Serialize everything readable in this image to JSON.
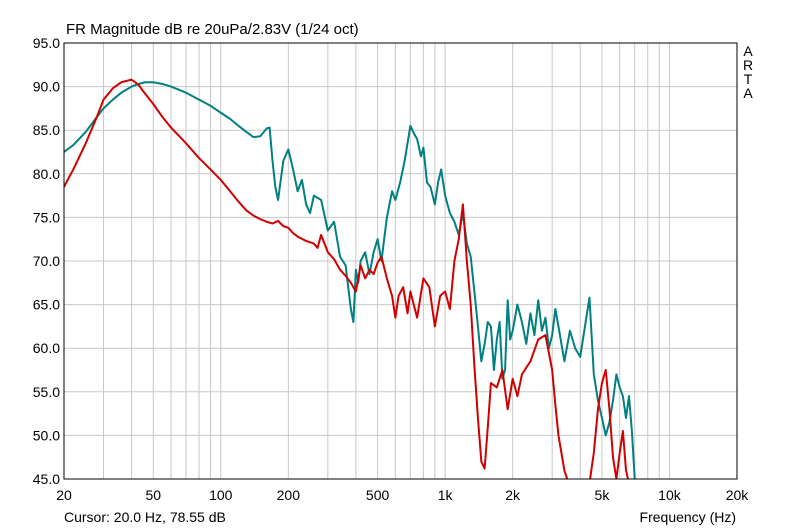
{
  "chart_data": {
    "type": "line",
    "title": "FR Magnitude dB re 20uPa/2.83V (1/24 oct)",
    "xlabel": "Frequency (Hz)",
    "ylabel": "",
    "xscale": "log",
    "xlim": [
      20,
      20000
    ],
    "ylim": [
      45,
      95
    ],
    "grid": true,
    "x_ticks": [
      20,
      50,
      100,
      200,
      500,
      1000,
      2000,
      5000,
      10000,
      20000
    ],
    "x_tick_labels": [
      "20",
      "50",
      "100",
      "200",
      "500",
      "1k",
      "2k",
      "5k",
      "10k",
      "20k"
    ],
    "y_ticks": [
      45,
      50,
      55,
      60,
      65,
      70,
      75,
      80,
      85,
      90,
      95
    ],
    "y_tick_labels": [
      "45.0",
      "50.0",
      "55.0",
      "60.0",
      "65.0",
      "70.0",
      "75.0",
      "80.0",
      "85.0",
      "90.0",
      "95.0"
    ],
    "series": [
      {
        "color": "#008080",
        "x": [
          20,
          22,
          25,
          28,
          30,
          33,
          36,
          40,
          43,
          46,
          50,
          55,
          60,
          70,
          80,
          90,
          100,
          110,
          120,
          130,
          140,
          150,
          160,
          165,
          170,
          175,
          180,
          190,
          200,
          210,
          220,
          230,
          240,
          250,
          260,
          280,
          300,
          320,
          340,
          360,
          380,
          390,
          400,
          410,
          420,
          440,
          460,
          480,
          500,
          520,
          550,
          580,
          600,
          630,
          660,
          700,
          730,
          750,
          780,
          800,
          830,
          860,
          900,
          930,
          960,
          1000,
          1050,
          1100,
          1150,
          1200,
          1250,
          1300,
          1350,
          1400,
          1450,
          1500,
          1550,
          1600,
          1650,
          1700,
          1750,
          1800,
          1850,
          1900,
          1950,
          2000,
          2100,
          2200,
          2300,
          2400,
          2500,
          2600,
          2700,
          2800,
          2900,
          3000,
          3100,
          3200,
          3400,
          3600,
          3800,
          4000,
          4200,
          4400,
          4600,
          4800,
          5000,
          5200,
          5400,
          5600,
          5800,
          6000,
          6200,
          6400,
          6600,
          6800,
          7000,
          7200,
          7400
        ],
        "y": [
          82.5,
          83.3,
          84.8,
          86.5,
          87.5,
          88.5,
          89.3,
          90.0,
          90.3,
          90.5,
          90.5,
          90.3,
          90.0,
          89.3,
          88.5,
          87.8,
          87.0,
          86.3,
          85.5,
          84.8,
          84.2,
          84.3,
          85.2,
          85.3,
          81.5,
          78.5,
          77.0,
          81.5,
          82.8,
          80.5,
          78.0,
          79.3,
          76.5,
          75.5,
          77.5,
          77.0,
          73.5,
          74.5,
          70.5,
          69.5,
          64.5,
          63.0,
          69.0,
          67.5,
          70.0,
          71.0,
          68.5,
          71.0,
          72.5,
          70.0,
          75.0,
          78.0,
          77.0,
          79.0,
          81.5,
          85.5,
          84.5,
          84.0,
          82.0,
          83.0,
          79.0,
          78.5,
          76.5,
          79.0,
          80.5,
          77.5,
          75.5,
          74.5,
          73.0,
          75.5,
          72.0,
          70.5,
          66.5,
          62.5,
          58.5,
          60.5,
          63.0,
          62.5,
          57.5,
          61.0,
          63.0,
          56.5,
          57.5,
          65.5,
          61.0,
          62.0,
          65.0,
          63.0,
          60.5,
          64.0,
          61.5,
          65.5,
          62.0,
          63.5,
          60.0,
          61.5,
          64.5,
          62.5,
          58.5,
          62.0,
          60.0,
          59.0,
          62.5,
          65.8,
          57.0,
          54.0,
          52.0,
          50.0,
          51.5,
          54.0,
          57.0,
          55.5,
          54.5,
          52.0,
          54.5,
          50.5,
          45.0,
          43.0,
          42.0
        ]
      },
      {
        "color": "#d10000",
        "x": [
          20,
          22,
          25,
          28,
          30,
          33,
          36,
          40,
          43,
          45,
          50,
          55,
          60,
          70,
          80,
          90,
          100,
          110,
          120,
          130,
          140,
          150,
          160,
          170,
          180,
          190,
          200,
          210,
          220,
          240,
          260,
          270,
          280,
          300,
          320,
          340,
          360,
          380,
          400,
          420,
          440,
          460,
          480,
          500,
          520,
          550,
          580,
          600,
          620,
          650,
          680,
          700,
          750,
          800,
          850,
          900,
          950,
          1000,
          1050,
          1100,
          1150,
          1200,
          1250,
          1300,
          1350,
          1400,
          1450,
          1500,
          1550,
          1600,
          1700,
          1800,
          1900,
          2000,
          2100,
          2200,
          2400,
          2600,
          2800,
          3000,
          3100,
          3200,
          3400,
          3600,
          3800,
          4000,
          4200,
          4400,
          4600,
          4800,
          5000,
          5200,
          5400,
          5600,
          5800,
          6000,
          6200,
          6400,
          6600,
          6800,
          7000
        ],
        "y": [
          78.5,
          80.5,
          83.5,
          86.5,
          88.5,
          89.8,
          90.5,
          90.8,
          90.2,
          89.5,
          88.0,
          86.5,
          85.3,
          83.5,
          81.8,
          80.5,
          79.3,
          78.0,
          76.8,
          75.8,
          75.2,
          74.8,
          74.5,
          74.3,
          74.6,
          74.0,
          73.8,
          73.2,
          72.8,
          72.3,
          72.0,
          71.5,
          73.0,
          71.0,
          70.2,
          69.0,
          68.3,
          67.5,
          66.5,
          69.5,
          68.0,
          69.0,
          68.5,
          69.8,
          70.5,
          68.0,
          66.0,
          63.5,
          66.0,
          67.0,
          64.0,
          66.5,
          63.5,
          68.0,
          67.0,
          62.5,
          66.0,
          66.5,
          64.5,
          70.0,
          72.5,
          76.5,
          70.0,
          65.0,
          58.0,
          52.0,
          47.0,
          46.2,
          51.0,
          56.0,
          55.5,
          57.5,
          53.0,
          56.5,
          54.5,
          57.0,
          58.5,
          61.0,
          61.5,
          57.5,
          53.5,
          50.0,
          46.0,
          44.0,
          41.5,
          42.0,
          43.0,
          44.5,
          48.0,
          53.0,
          56.0,
          57.5,
          53.0,
          47.5,
          45.0,
          48.0,
          50.5,
          46.0,
          44.5,
          43.5,
          42.5
        ]
      }
    ]
  },
  "header": {
    "title": "FR Magnitude dB re 20uPa/2.83V (1/24 oct)",
    "arta_letters": [
      "A",
      "R",
      "T",
      "A"
    ]
  },
  "footer": {
    "cursor_text": "Cursor: 20.0 Hz, 78.55 dB",
    "xlabel": "Frequency (Hz)"
  }
}
